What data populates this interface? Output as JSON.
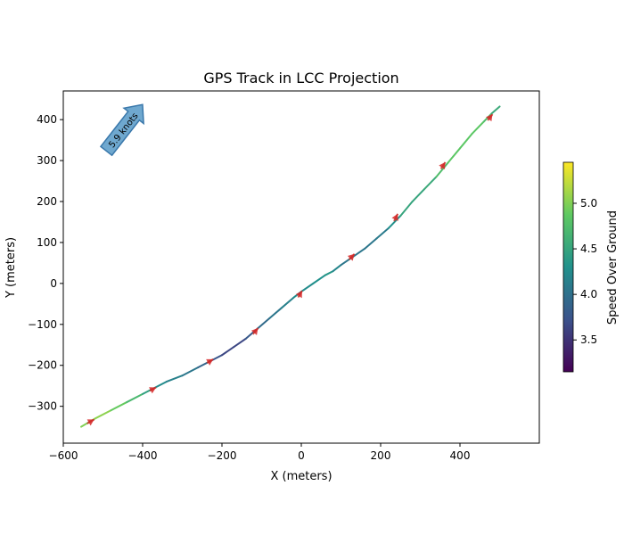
{
  "chart_data": {
    "type": "line",
    "title": "GPS Track in LCC Projection",
    "xlabel": "X (meters)",
    "ylabel": "Y (meters)",
    "xlim": [
      -600,
      600
    ],
    "ylim": [
      -390,
      470
    ],
    "xticks": [
      -600,
      -400,
      -200,
      0,
      200,
      400
    ],
    "yticks": [
      -300,
      -200,
      -100,
      0,
      100,
      200,
      300,
      400
    ],
    "grid": false,
    "colorbar": {
      "label": "Speed Over Ground",
      "range": [
        3.15,
        5.45
      ],
      "ticks": [
        3.5,
        4.0,
        4.5,
        5.0
      ],
      "colormap": "viridis"
    },
    "series": [
      {
        "x": [
          -555,
          -520,
          -480,
          -440,
          -400,
          -370,
          -340,
          -300,
          -260,
          -230,
          -200,
          -170,
          -140,
          -110,
          -80,
          -50,
          -20,
          0,
          30,
          60,
          80,
          100,
          130,
          160,
          190,
          220,
          250,
          280,
          310,
          340,
          370,
          400,
          430,
          460,
          480,
          500
        ],
        "y": [
          -350,
          -330,
          -310,
          -290,
          -270,
          -255,
          -240,
          -225,
          -205,
          -190,
          -175,
          -155,
          -135,
          -110,
          -85,
          -60,
          -35,
          -20,
          0,
          20,
          30,
          45,
          65,
          85,
          110,
          135,
          165,
          200,
          230,
          260,
          295,
          330,
          365,
          395,
          415,
          432
        ],
        "speed": [
          4.9,
          5.1,
          5.0,
          4.8,
          4.6,
          4.3,
          4.2,
          4.1,
          4.0,
          3.8,
          3.7,
          3.6,
          3.7,
          3.9,
          4.0,
          4.1,
          4.2,
          4.3,
          4.2,
          4.4,
          4.3,
          4.1,
          4.0,
          4.1,
          4.0,
          4.2,
          4.4,
          4.6,
          4.4,
          4.7,
          4.8,
          4.9,
          4.8,
          4.9,
          4.6,
          4.5
        ]
      }
    ],
    "arrows": [
      {
        "x": -540,
        "y": -342,
        "dx": 18,
        "dy": 10
      },
      {
        "x": -382,
        "y": -262,
        "dx": 16,
        "dy": 8
      },
      {
        "x": -238,
        "y": -194,
        "dx": 16,
        "dy": 9
      },
      {
        "x": -122,
        "y": -124,
        "dx": 13,
        "dy": 15
      },
      {
        "x": -8,
        "y": -34,
        "dx": 10,
        "dy": 16
      },
      {
        "x": 120,
        "y": 58,
        "dx": 14,
        "dy": 14
      },
      {
        "x": 234,
        "y": 152,
        "dx": 9,
        "dy": 18
      },
      {
        "x": 352,
        "y": 280,
        "dx": 11,
        "dy": 16
      },
      {
        "x": 470,
        "y": 398,
        "dx": 12,
        "dy": 15
      }
    ],
    "annotation": {
      "text": "5.9 knots",
      "x": -450,
      "y": 375,
      "angle": -52
    }
  }
}
